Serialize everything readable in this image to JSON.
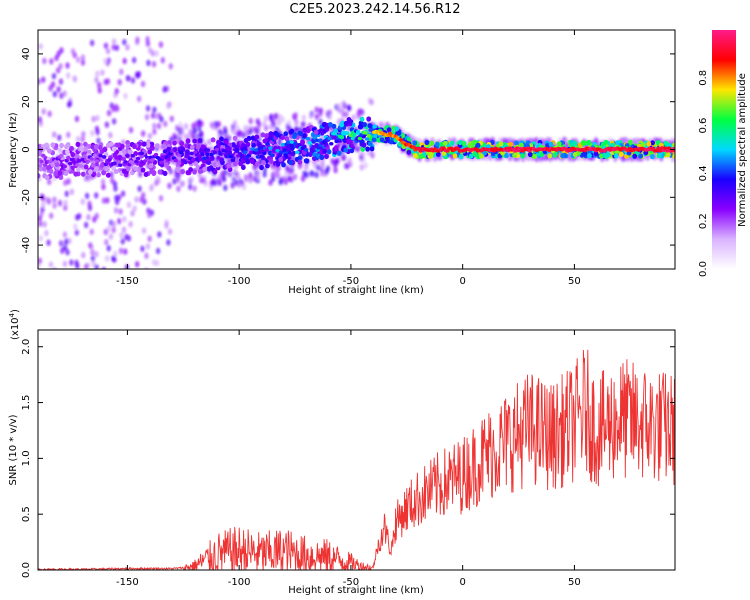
{
  "title": "C2E5.2023.242.14.56.R12",
  "chart_data": [
    {
      "type": "heatmap",
      "xlabel": "Height of straight line (km)",
      "ylabel": "Frequency (Hz)",
      "xlim": [
        -190,
        95
      ],
      "ylim": [
        -50,
        50
      ],
      "xticks": [
        -150,
        -100,
        -50,
        0,
        50
      ],
      "yticks": [
        -40,
        -20,
        0,
        20,
        40
      ],
      "colorbar": {
        "label": "Normalized spectral amplitude",
        "range": [
          0.0,
          1.0
        ],
        "ticks": [
          "0.0",
          "0.2",
          "0.4",
          "0.6",
          "0.8"
        ],
        "colors": [
          "#ffffff",
          "#d9b3ff",
          "#8a00ff",
          "#1a00ff",
          "#00d9ff",
          "#00ff40",
          "#ffe600",
          "#ff0000",
          "#ff1a8a"
        ]
      },
      "ridge": {
        "x": [
          -190,
          -150,
          -130,
          -100,
          -75,
          -60,
          -50,
          -40,
          -30,
          -25,
          -20,
          0,
          20,
          40,
          60,
          80,
          95
        ],
        "freq_hz": [
          -5,
          -4,
          -3,
          -2,
          1,
          4,
          6,
          7,
          6,
          2,
          0,
          0,
          0,
          0,
          0,
          0,
          0
        ],
        "amplitude": [
          0.3,
          0.35,
          0.4,
          0.45,
          0.55,
          0.6,
          0.7,
          0.8,
          0.85,
          0.9,
          0.95,
          0.97,
          0.98,
          0.98,
          0.98,
          0.98,
          0.98
        ]
      }
    },
    {
      "type": "line",
      "xlabel": "Height of straight line (km)",
      "ylabel": "SNR (10 * v/v)",
      "scale_label": "(x10",
      "scale_exponent": "4",
      "scale_suffix": ")",
      "xlim": [
        -190,
        95
      ],
      "ylim": [
        0,
        2.15
      ],
      "xticks": [
        -150,
        -100,
        -50,
        0,
        50
      ],
      "yticks": [
        "0.0",
        "0.5",
        "1.0",
        "1.5",
        "2.0"
      ],
      "color": "#ee3333",
      "series": [
        {
          "x": [
            -190,
            -170,
            -150,
            -130,
            -125,
            -120,
            -110,
            -100,
            -90,
            -80,
            -70,
            -60,
            -50,
            -45,
            -40,
            -38,
            -35,
            -32,
            -30,
            -25,
            -20,
            -10,
            0,
            10,
            20,
            30,
            40,
            50,
            55,
            60,
            70,
            80,
            90,
            95
          ],
          "values": [
            0.01,
            0.01,
            0.02,
            0.02,
            0.03,
            0.06,
            0.22,
            0.26,
            0.22,
            0.25,
            0.2,
            0.18,
            0.1,
            0.05,
            0.03,
            0.25,
            0.45,
            0.2,
            0.5,
            0.65,
            0.75,
            0.9,
            1.0,
            1.2,
            1.35,
            1.5,
            1.4,
            1.55,
            1.7,
            1.45,
            1.6,
            1.55,
            1.5,
            1.48
          ]
        }
      ]
    }
  ]
}
